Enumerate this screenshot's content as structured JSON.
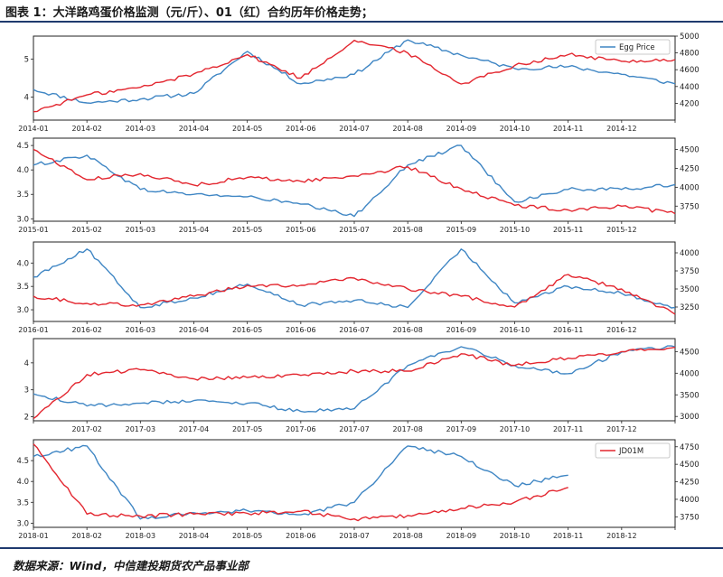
{
  "title": "图表 1：大洋路鸡蛋价格监测（元/斤）、01（红）合约历年价格走势；",
  "source": "数据来源：Wind，中信建投期货农产品事业部",
  "colors": {
    "egg": "#3f86c4",
    "futures": "#e3262f",
    "rule": "#1f3a6e"
  },
  "chart_data": [
    {
      "type": "line",
      "x": [
        "2014-01",
        "2014-02",
        "2014-03",
        "2014-04",
        "2014-05",
        "2014-06",
        "2014-07",
        "2014-08",
        "2014-09",
        "2014-10",
        "2014-11",
        "2014-12",
        "2014-12-31"
      ],
      "xticklabels": [
        "2014-01",
        "2014-02",
        "2014-03",
        "2014-04",
        "2014-05",
        "2014-06",
        "2014-07",
        "2014-08",
        "2014-09",
        "2014-10",
        "2014-11",
        "2014-12",
        ""
      ],
      "ylim_left": [
        3.4,
        5.6
      ],
      "yticks_left": [
        "4",
        "5"
      ],
      "ytickvals_left": [
        4,
        5
      ],
      "ylim_right": [
        4000,
        5000
      ],
      "yticks_right": [
        "4200",
        "4400",
        "4600",
        "4800",
        "5000"
      ],
      "ytickvals_right": [
        4200,
        4400,
        4600,
        4800,
        5000
      ],
      "legend": "Egg Price",
      "legend_position": "top-right",
      "series": [
        {
          "name": "Egg Price",
          "axis": "left",
          "color": "#3f86c4",
          "values": [
            4.2,
            3.85,
            3.95,
            4.1,
            5.2,
            4.35,
            4.6,
            5.5,
            5.1,
            4.75,
            4.8,
            4.6,
            4.35
          ]
        },
        {
          "axis": "right",
          "color": "#e3262f",
          "values": [
            4100,
            4300,
            4390,
            4550,
            4780,
            4500,
            4950,
            4800,
            4430,
            4650,
            4780,
            4700,
            4720
          ]
        }
      ]
    },
    {
      "type": "line",
      "x": [
        "2015-01",
        "2015-02",
        "2015-03",
        "2015-04",
        "2015-05",
        "2015-06",
        "2015-07",
        "2015-08",
        "2015-09",
        "2015-10",
        "2015-11",
        "2015-12",
        "2015-12-31"
      ],
      "xticklabels": [
        "2015-01",
        "2015-02",
        "2015-03",
        "2015-04",
        "2015-05",
        "2015-06",
        "2015-07",
        "2015-08",
        "2015-09",
        "2015-10",
        "2015-11",
        "2015-12",
        ""
      ],
      "ylim_left": [
        2.95,
        4.65
      ],
      "yticks_left": [
        "3.0",
        "3.5",
        "4.0",
        "4.5"
      ],
      "ytickvals_left": [
        3.0,
        3.5,
        4.0,
        4.5
      ],
      "ylim_right": [
        3550,
        4650
      ],
      "yticks_right": [
        "3750",
        "4000",
        "4250",
        "4500"
      ],
      "ytickvals_right": [
        3750,
        4000,
        4250,
        4500
      ],
      "series": [
        {
          "axis": "left",
          "color": "#3f86c4",
          "values": [
            4.1,
            4.3,
            3.6,
            3.5,
            3.45,
            3.3,
            3.05,
            4.1,
            4.5,
            3.35,
            3.6,
            3.6,
            3.7
          ]
        },
        {
          "axis": "right",
          "color": "#e3262f",
          "values": [
            4500,
            4100,
            4180,
            4030,
            4130,
            4080,
            4150,
            4270,
            3980,
            3760,
            3700,
            3750,
            3650
          ]
        }
      ]
    },
    {
      "type": "line",
      "x": [
        "2016-01",
        "2016-02",
        "2016-03",
        "2016-04",
        "2016-05",
        "2016-06",
        "2016-07",
        "2016-08",
        "2016-09",
        "2016-10",
        "2016-11",
        "2016-12",
        "2016-12-31"
      ],
      "xticklabels": [
        "2016-01",
        "2016-02",
        "2016-03",
        "2016-04",
        "2016-05",
        "2016-06",
        "2016-07",
        "2016-08",
        "2016-09",
        "2016-10",
        "2016-11",
        "2016-12",
        ""
      ],
      "ylim_left": [
        2.75,
        4.45
      ],
      "yticks_left": [
        "3.0",
        "3.5",
        "4.0"
      ],
      "ytickvals_left": [
        3.0,
        3.5,
        4.0
      ],
      "ylim_right": [
        3050,
        4150
      ],
      "yticks_right": [
        "3250",
        "3500",
        "3750",
        "4000"
      ],
      "ytickvals_right": [
        3250,
        3500,
        3750,
        4000
      ],
      "series": [
        {
          "axis": "left",
          "color": "#3f86c4",
          "values": [
            3.7,
            4.3,
            3.05,
            3.25,
            3.55,
            3.1,
            3.2,
            3.05,
            4.3,
            3.15,
            3.5,
            3.35,
            3.05
          ]
        },
        {
          "axis": "right",
          "color": "#e3262f",
          "values": [
            3400,
            3300,
            3280,
            3400,
            3550,
            3550,
            3650,
            3500,
            3400,
            3250,
            3700,
            3500,
            3150
          ]
        }
      ]
    },
    {
      "type": "line",
      "x": [
        "2017-01",
        "2017-02",
        "2017-03",
        "2017-04",
        "2017-05",
        "2017-06",
        "2017-07",
        "2017-08",
        "2017-09",
        "2017-10",
        "2017-11",
        "2017-12",
        "2017-12-31"
      ],
      "xticklabels": [
        "",
        "2017-02",
        "2017-03",
        "2017-04",
        "2017-05",
        "2017-06",
        "2017-07",
        "2017-08",
        "2017-09",
        "2017-10",
        "2017-11",
        "2017-12",
        ""
      ],
      "ylim_left": [
        1.85,
        4.9
      ],
      "yticks_left": [
        "2",
        "3",
        "4"
      ],
      "ytickvals_left": [
        2,
        3,
        4
      ],
      "ylim_right": [
        2900,
        4800
      ],
      "yticks_right": [
        "3000",
        "3500",
        "4000",
        "4500"
      ],
      "ytickvals_right": [
        3000,
        3500,
        4000,
        4500
      ],
      "series": [
        {
          "axis": "left",
          "color": "#3f86c4",
          "values": [
            2.85,
            2.4,
            2.5,
            2.6,
            2.5,
            2.2,
            2.3,
            3.9,
            4.6,
            3.9,
            3.6,
            4.4,
            4.6
          ]
        },
        {
          "axis": "right",
          "color": "#e3262f",
          "values": [
            2950,
            3970,
            4080,
            3870,
            3900,
            3950,
            4050,
            4050,
            4450,
            4180,
            4350,
            4500,
            4600
          ]
        }
      ]
    },
    {
      "type": "line",
      "x": [
        "2018-01",
        "2018-02",
        "2018-03",
        "2018-04",
        "2018-05",
        "2018-06",
        "2018-07",
        "2018-08",
        "2018-09",
        "2018-10",
        "2018-11",
        "2018-12",
        "2018-12-31"
      ],
      "xticklabels": [
        "2018-01",
        "2018-02",
        "2018-03",
        "2018-04",
        "2018-05",
        "2018-06",
        "2018-07",
        "2018-08",
        "2018-09",
        "2018-10",
        "2018-11",
        "2018-12",
        ""
      ],
      "ylim_left": [
        2.9,
        5.0
      ],
      "yticks_left": [
        "3.0",
        "3.5",
        "4.0",
        "4.5"
      ],
      "ytickvals_left": [
        3.0,
        3.5,
        4.0,
        4.5
      ],
      "ylim_right": [
        3600,
        4850
      ],
      "yticks_right": [
        "3750",
        "4000",
        "4250",
        "4500",
        "4750"
      ],
      "ytickvals_right": [
        3750,
        4000,
        4250,
        4500,
        4750
      ],
      "legend": "JD01M",
      "legend_position": "top-right",
      "series": [
        {
          "axis": "left",
          "color": "#3f86c4",
          "values": [
            4.6,
            4.85,
            3.1,
            3.25,
            3.3,
            3.2,
            3.5,
            4.85,
            4.6,
            3.9,
            4.15,
            null,
            null
          ]
        },
        {
          "name": "JD01M",
          "axis": "right",
          "color": "#e3262f",
          "values": [
            4790,
            3790,
            3760,
            3790,
            3800,
            3830,
            3720,
            3770,
            3870,
            3960,
            4170,
            null,
            null
          ]
        }
      ]
    }
  ]
}
